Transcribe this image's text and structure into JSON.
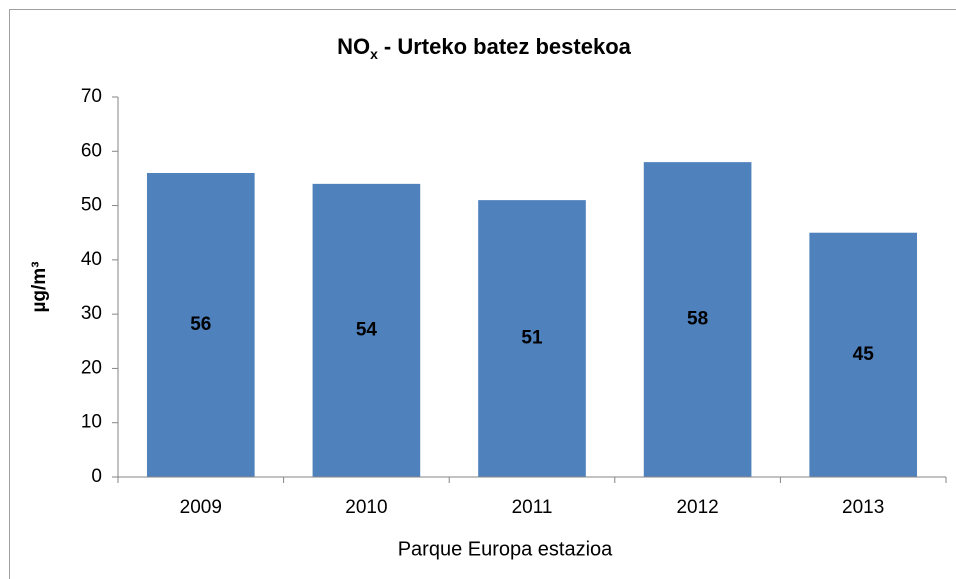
{
  "chart_data": {
    "type": "bar",
    "title": [
      "NO",
      "x",
      "- Urteko batez bestekoa"
    ],
    "x_label": "Parque Europa estazioa",
    "y_label": "µg/m³",
    "categories": [
      "2009",
      "2010",
      "2011",
      "2012",
      "2013"
    ],
    "values": [
      56,
      54,
      51,
      58,
      45
    ],
    "color": "#4f81bd",
    "ylim": [
      0,
      70
    ],
    "yticks": [
      0,
      10,
      20,
      30,
      40,
      50,
      60,
      70
    ],
    "grid": false,
    "data_labels": true
  }
}
